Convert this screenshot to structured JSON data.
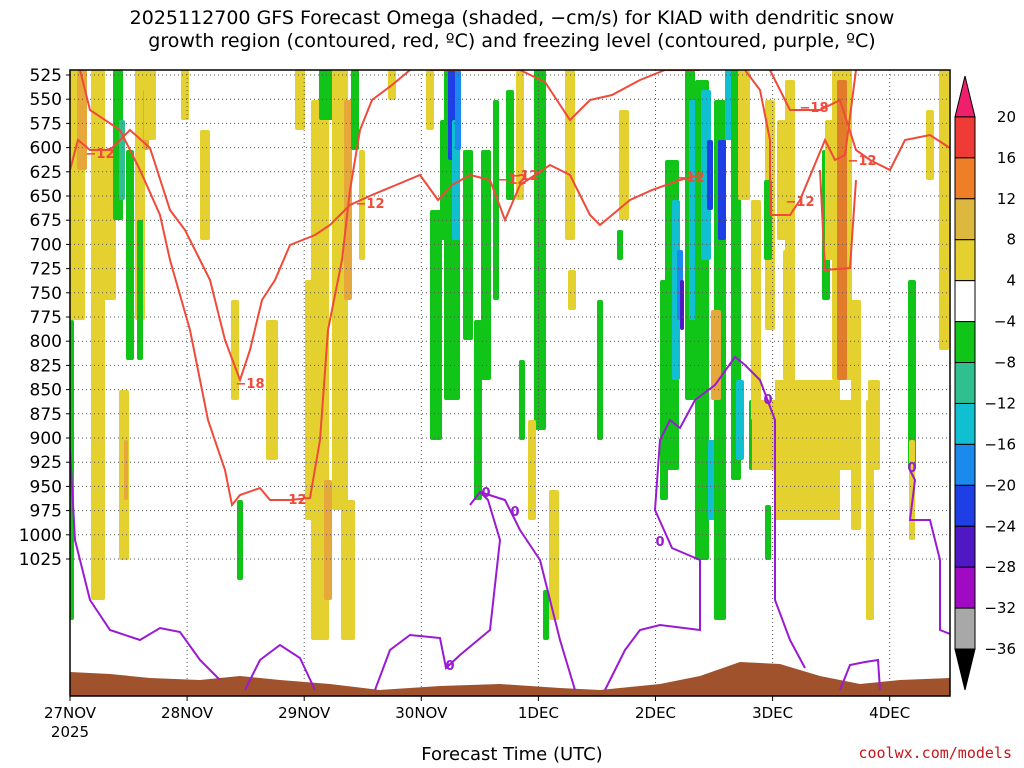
{
  "title": {
    "line1": "2025112700 GFS Forecast Omega (shaded, −cm/s) for KIAD with dendritic snow",
    "line2": "growth region (contoured, red, ºC) and freezing level (contoured, purple, ºC)"
  },
  "chart_data": {
    "type": "heatmap",
    "xlabel": "Forecast Time (UTC)",
    "credit": "coolwx.com/models",
    "x_ticks": [
      "27NOV",
      "28NOV",
      "29NOV",
      "30NOV",
      "1DEC",
      "2DEC",
      "3DEC",
      "4DEC"
    ],
    "x_year": "2025",
    "y_ticks": [
      "525",
      "550",
      "575",
      "600",
      "625",
      "650",
      "675",
      "700",
      "725",
      "750",
      "775",
      "800",
      "825",
      "850",
      "875",
      "900",
      "925",
      "950",
      "975",
      "1000",
      "1025"
    ],
    "colorbar": {
      "labels": [
        "20",
        "16",
        "12",
        "8",
        "4",
        "−4",
        "−8",
        "−12",
        "−16",
        "−20",
        "−24",
        "−28",
        "−32",
        "−36"
      ],
      "colors": [
        "#ee1f6c",
        "#ee3b35",
        "#ee7e28",
        "#ddb840",
        "#e4d02e",
        "#ffffff",
        "#10c418",
        "#30c090",
        "#10c0d0",
        "#1a8aee",
        "#1f3fe6",
        "#5017c4",
        "#a00ac2",
        "#a8a8a8",
        "#000000"
      ]
    },
    "red_contour_labels": [
      "−12",
      "−12",
      "−12",
      "−12",
      "−12",
      "−12",
      "−18",
      "−18",
      "−12",
      "−12"
    ],
    "purple_contour_labels": [
      "0",
      "0",
      "0",
      "0",
      "0",
      "0"
    ],
    "colors": {
      "red_contour": "#f04a3a",
      "purple_contour": "#9a1ad4",
      "terrain": "#a0522d"
    }
  }
}
